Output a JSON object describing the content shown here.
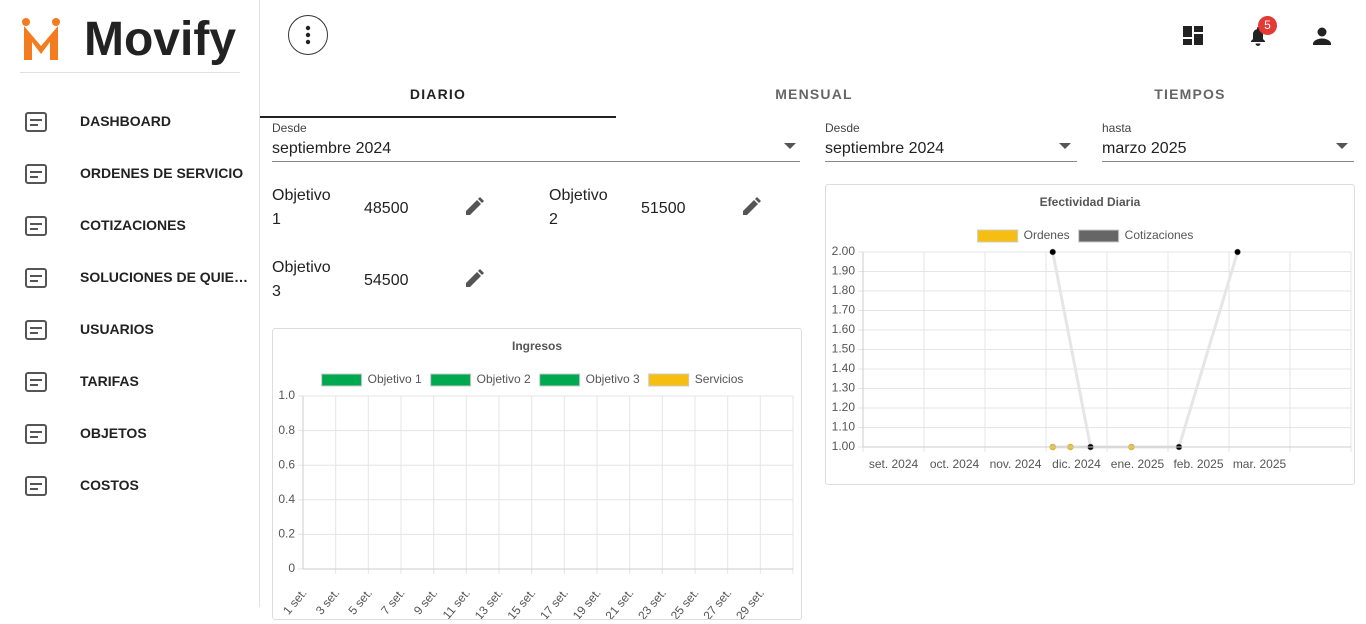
{
  "sidebar": {
    "brand": "Movify",
    "menu": [
      "DASHBOARD",
      "ORDENES DE SERVICIO",
      "COTIZACIONES",
      "SOLUCIONES DE QUIE…",
      "USUARIOS",
      "TARIFAS",
      "OBJETOS",
      "COSTOS"
    ]
  },
  "topbar": {
    "notification_count": 5
  },
  "tabs": [
    "DIARIO",
    "MENSUAL",
    "TIEMPOS"
  ],
  "filters": {
    "left": {
      "label": "Desde",
      "value": "septiembre 2024"
    },
    "right_from": {
      "label": "Desde",
      "value": "septiembre 2024"
    },
    "right_to": {
      "label": "hasta",
      "value": "marzo 2025"
    }
  },
  "objectives": [
    {
      "label": "Objetivo 1",
      "value": 48500
    },
    {
      "label": "Objetivo 2",
      "value": 51500
    },
    {
      "label": "Objetivo 3",
      "value": 54500
    }
  ],
  "chart_data": [
    {
      "type": "line",
      "title": "Ingresos",
      "categories": [
        "1 set.",
        "3 set.",
        "5 set.",
        "7 set.",
        "9 set.",
        "11 set.",
        "13 set.",
        "15 set.",
        "17 set.",
        "19 set.",
        "21 set.",
        "23 set.",
        "25 set.",
        "27 set.",
        "29 set."
      ],
      "series": [
        {
          "name": "Objetivo 1",
          "color": "#00a84f"
        },
        {
          "name": "Objetivo 2",
          "color": "#00a84f"
        },
        {
          "name": "Objetivo 3",
          "color": "#00a84f"
        },
        {
          "name": "Servicios",
          "color": "#f5be10"
        }
      ],
      "ylim": [
        0,
        1
      ],
      "yticks": [
        0,
        0.2,
        0.4,
        0.6,
        0.8,
        {
          "value": 1,
          "label": "1.0"
        }
      ],
      "grid": true
    },
    {
      "type": "scatter-line",
      "title": "Efectividad Diaria",
      "categories": [
        "set. 2024",
        "oct. 2024",
        "nov. 2024",
        "dic. 2024",
        "ene. 2025",
        "feb. 2025",
        "mar. 2025"
      ],
      "xlim": [
        0,
        8
      ],
      "series": [
        {
          "name": "Ordenes",
          "color": "#f5be10",
          "point_color": "#f5be10",
          "line_color": "#e6e6e6",
          "x": [
            3.11,
            3.4,
            3.73,
            4.4
          ],
          "values": [
            1,
            1,
            1,
            1
          ]
        },
        {
          "name": "Cotizaciones",
          "color": "#666666",
          "point_color": "#000000",
          "line_color": "#e6e6e6",
          "x": [
            3.11,
            3.73,
            5.18,
            6.14
          ],
          "values": [
            2,
            1,
            1,
            2
          ]
        }
      ],
      "ylim": [
        1,
        2
      ],
      "yticks": [
        {
          "value": 1,
          "label": "1.00"
        },
        {
          "value": 1.1,
          "label": "1.10"
        },
        {
          "value": 1.2,
          "label": "1.20"
        },
        {
          "value": 1.3,
          "label": "1.30"
        },
        {
          "value": 1.4,
          "label": "1.40"
        },
        {
          "value": 1.5,
          "label": "1.50"
        },
        {
          "value": 1.6,
          "label": "1.60"
        },
        {
          "value": 1.7,
          "label": "1.70"
        },
        {
          "value": 1.8,
          "label": "1.80"
        },
        {
          "value": 1.9,
          "label": "1.90"
        },
        {
          "value": 2,
          "label": "2.00"
        }
      ],
      "grid": true
    }
  ]
}
